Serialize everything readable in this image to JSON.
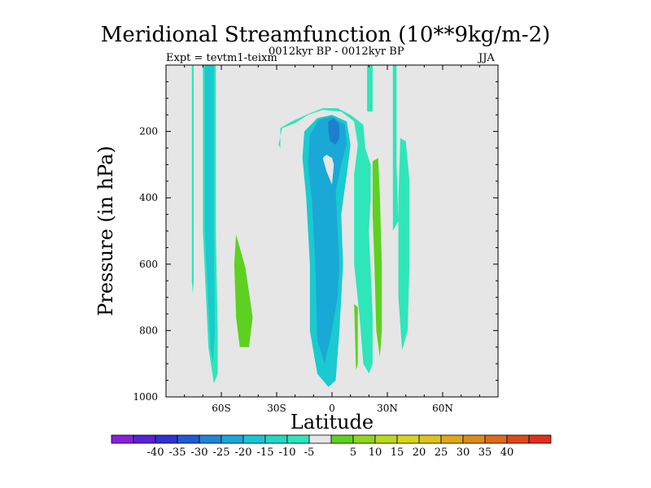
{
  "title": "Meridional Streamfunction (10**9kg/m-2)",
  "expt": "Expt = tevtm1-teixm",
  "case_info": "0012kyr BP - 0012kyr BP",
  "season": "JJA",
  "colors": {
    "background": "#e6e6e6",
    "axis": "#000000",
    "contours": {
      "neg5_0": "#2ee6b9",
      "neg10_neg5": "#19cad1",
      "neg15_neg10": "#1aa8d6",
      "neg20_neg15": "#1d7fd1",
      "pos5_10": "#5dd11f"
    }
  },
  "colorbar": {
    "colors": [
      "#8a1ee0",
      "#5a1fd6",
      "#3030d8",
      "#1e5ad8",
      "#1f85d6",
      "#18a8d8",
      "#17c6d6",
      "#22d8c3",
      "#2ee6b9",
      "#e6e6e6",
      "#5dd11f",
      "#8fd61c",
      "#b9d91a",
      "#d8d61a",
      "#e0c21a",
      "#e0a818",
      "#e08a18",
      "#e06a18",
      "#e0481a",
      "#e0301c"
    ],
    "labels": [
      "-40",
      "-35",
      "-30",
      "-25",
      "-20",
      "-15",
      "-10",
      "-5",
      "5",
      "10",
      "15",
      "20",
      "25",
      "30",
      "35",
      "40"
    ]
  },
  "chart_data": {
    "type": "heatmap",
    "title": "Meridional Streamfunction (10**9kg/m-2)",
    "xlabel": "Latitude",
    "ylabel": "Pressure (in hPa)",
    "xlim": [
      -90,
      90
    ],
    "ylim": [
      1000,
      0
    ],
    "xticks": [
      -60,
      -30,
      0,
      30,
      60
    ],
    "xtick_labels": [
      "60S",
      "30S",
      "0",
      "30N",
      "60N"
    ],
    "yticks": [
      200,
      400,
      600,
      800,
      1000
    ],
    "ytick_labels": [
      "200",
      "400",
      "600",
      "800",
      "1000"
    ],
    "regions": [
      {
        "name": "thin-neg-band-sh-high",
        "level": "-5_0",
        "points": [
          [
            -76,
            0
          ],
          [
            -75,
            0
          ],
          [
            -75,
            650
          ],
          [
            -75.5,
            690
          ],
          [
            -76,
            650
          ]
        ]
      },
      {
        "name": "sh-column-outer",
        "level": "-5_0",
        "points": [
          [
            -70,
            0
          ],
          [
            -63,
            0
          ],
          [
            -63,
            500
          ],
          [
            -62,
            800
          ],
          [
            -62,
            930
          ],
          [
            -64,
            960
          ],
          [
            -67,
            850
          ],
          [
            -70,
            500
          ]
        ]
      },
      {
        "name": "sh-column-inner",
        "level": "-10_-5",
        "points": [
          [
            -69,
            0
          ],
          [
            -64,
            0
          ],
          [
            -64,
            500
          ],
          [
            -63.5,
            800
          ],
          [
            -64.5,
            900
          ],
          [
            -66,
            850
          ],
          [
            -69,
            500
          ]
        ]
      },
      {
        "name": "sh-positive-blob",
        "level": "5_10",
        "points": [
          [
            -52,
            510
          ],
          [
            -47,
            610
          ],
          [
            -43,
            760
          ],
          [
            -45,
            850
          ],
          [
            -50,
            850
          ],
          [
            -52,
            760
          ],
          [
            -53,
            600
          ]
        ]
      },
      {
        "name": "tropical-cell-outer",
        "level": "-5_0",
        "points": [
          [
            -29,
            240
          ],
          [
            -27,
            190
          ],
          [
            -20,
            175
          ],
          [
            -13,
            150
          ],
          [
            -5,
            135
          ],
          [
            5,
            140
          ],
          [
            12,
            170
          ],
          [
            14,
            240
          ],
          [
            12,
            330
          ],
          [
            12,
            600
          ],
          [
            15,
            760
          ],
          [
            17,
            900
          ],
          [
            20,
            930
          ],
          [
            22,
            900
          ],
          [
            22,
            750
          ],
          [
            20,
            500
          ],
          [
            21,
            400
          ],
          [
            21,
            300
          ],
          [
            18,
            250
          ],
          [
            17,
            180
          ],
          [
            10,
            150
          ],
          [
            3,
            130
          ],
          [
            -5,
            130
          ],
          [
            -14,
            150
          ],
          [
            -22,
            170
          ],
          [
            -28,
            190
          ],
          [
            -28,
            250
          ]
        ]
      },
      {
        "name": "tropical-cell-neg10",
        "level": "-10_-5",
        "points": [
          [
            -15,
            200
          ],
          [
            -8,
            160
          ],
          [
            0,
            150
          ],
          [
            8,
            170
          ],
          [
            10,
            240
          ],
          [
            8,
            330
          ],
          [
            5,
            450
          ],
          [
            6,
            600
          ],
          [
            4,
            800
          ],
          [
            2,
            950
          ],
          [
            -2,
            970
          ],
          [
            -8,
            930
          ],
          [
            -12,
            800
          ],
          [
            -12,
            600
          ],
          [
            -14,
            400
          ],
          [
            -16,
            280
          ]
        ]
      },
      {
        "name": "tropical-cell-neg15",
        "level": "-15_-10",
        "points": [
          [
            -12,
            210
          ],
          [
            -7,
            165
          ],
          [
            0,
            155
          ],
          [
            7,
            180
          ],
          [
            8,
            240
          ],
          [
            5,
            300
          ],
          [
            2,
            380
          ],
          [
            4,
            600
          ],
          [
            3,
            700
          ],
          [
            0,
            800
          ],
          [
            -4,
            900
          ],
          [
            -8,
            830
          ],
          [
            -9,
            600
          ],
          [
            -11,
            400
          ],
          [
            -13,
            300
          ]
        ]
      },
      {
        "name": "tropical-cell-neg20",
        "level": "-20_-15",
        "points": [
          [
            -2,
            170
          ],
          [
            1,
            160
          ],
          [
            4,
            180
          ],
          [
            4,
            220
          ],
          [
            2,
            240
          ],
          [
            -1,
            230
          ],
          [
            -2,
            200
          ]
        ]
      },
      {
        "name": "tropical-cell-hole",
        "level": "zero",
        "points": [
          [
            -5,
            280
          ],
          [
            -3,
            270
          ],
          [
            0,
            280
          ],
          [
            1,
            300
          ],
          [
            0,
            360
          ],
          [
            -3,
            320
          ]
        ]
      },
      {
        "name": "nh-positive-band-a",
        "level": "5_10",
        "points": [
          [
            22,
            290
          ],
          [
            25,
            280
          ],
          [
            26,
            400
          ],
          [
            27,
            600
          ],
          [
            27,
            800
          ],
          [
            26,
            880
          ],
          [
            24,
            800
          ],
          [
            23,
            600
          ],
          [
            22,
            450
          ]
        ]
      },
      {
        "name": "nh-positive-sliver-b",
        "level": "5_10",
        "points": [
          [
            12,
            720
          ],
          [
            14,
            730
          ],
          [
            14,
            900
          ],
          [
            13,
            920
          ]
        ]
      },
      {
        "name": "nh-column-c",
        "level": "-5_0",
        "points": [
          [
            19,
            0
          ],
          [
            22,
            0
          ],
          [
            22,
            140
          ],
          [
            19,
            140
          ]
        ]
      },
      {
        "name": "nh-column-d",
        "level": "-5_0",
        "points": [
          [
            33,
            0
          ],
          [
            35,
            0
          ],
          [
            35,
            300
          ],
          [
            36,
            470
          ],
          [
            33,
            500
          ],
          [
            33,
            300
          ]
        ]
      },
      {
        "name": "nh-column-e",
        "level": "-5_0",
        "points": [
          [
            37,
            220
          ],
          [
            40,
            230
          ],
          [
            42,
            350
          ],
          [
            42,
            600
          ],
          [
            41,
            800
          ],
          [
            38,
            860
          ],
          [
            36,
            700
          ],
          [
            36,
            400
          ]
        ]
      }
    ]
  }
}
